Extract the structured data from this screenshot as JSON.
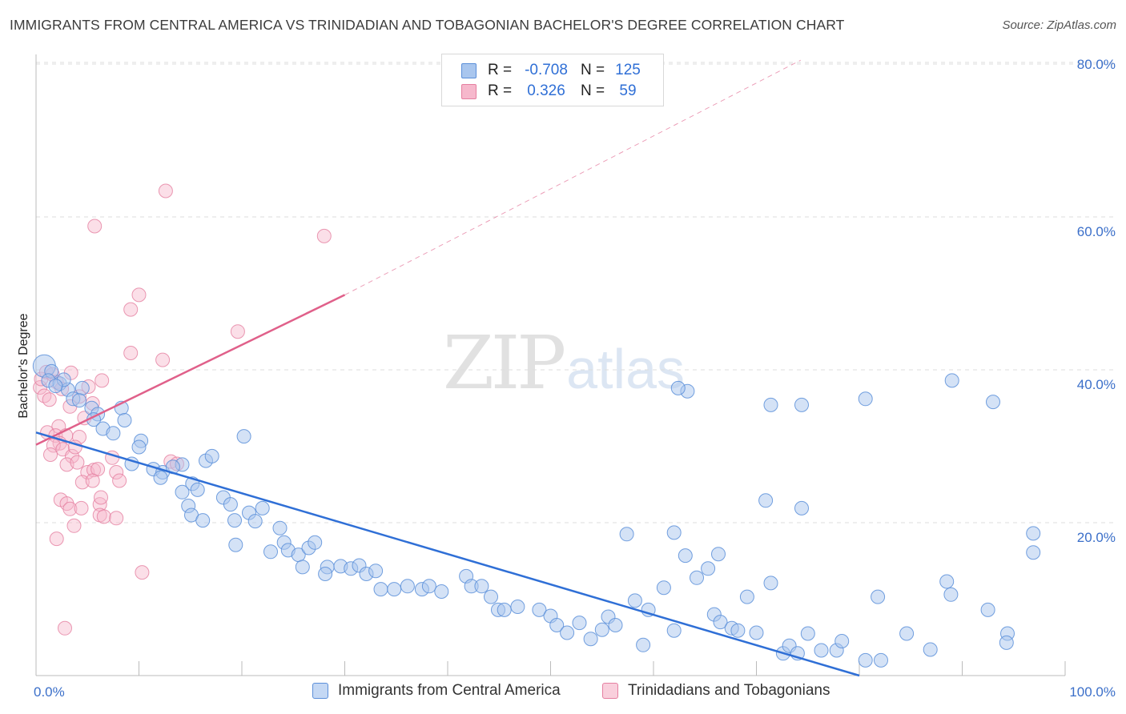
{
  "header": {
    "title": "IMMIGRANTS FROM CENTRAL AMERICA VS TRINIDADIAN AND TOBAGONIAN BACHELOR'S DEGREE CORRELATION CHART",
    "source": "Source: ZipAtlas.com"
  },
  "watermark": {
    "zip": "ZIP",
    "atlas": "atlas"
  },
  "legend": {
    "rows": [
      {
        "r_label": "R =",
        "r_value": "-0.708",
        "n_label": "N =",
        "n_value": "125"
      },
      {
        "r_label": "R =",
        "r_value": "0.326",
        "n_label": "N =",
        "n_value": "59"
      }
    ]
  },
  "bottom_legend": {
    "series1": "Immigrants from Central America",
    "series2": "Trinidadians and Tobagonians"
  },
  "colors": {
    "blue_fill": "#a9c6ee",
    "blue_stroke": "#5b8fd9",
    "blue_line": "#2f6fd6",
    "pink_fill": "#f6b8cc",
    "pink_stroke": "#e57fa0",
    "pink_line": "#e0608a",
    "grid": "#dddddd",
    "axis_label": "#3b6fc9"
  },
  "chart_data": {
    "type": "scatter",
    "title": "IMMIGRANTS FROM CENTRAL AMERICA VS TRINIDADIAN AND TOBAGONIAN BACHELOR'S DEGREE CORRELATION CHART",
    "xlabel": "",
    "ylabel": "Bachelor's Degree",
    "xlim": [
      0,
      100
    ],
    "ylim": [
      0,
      82
    ],
    "x_tick_labels": [
      "0.0%",
      "100.0%"
    ],
    "y_ticks": [
      20,
      40,
      60,
      80
    ],
    "y_tick_labels": [
      "20.0%",
      "40.0%",
      "60.0%",
      "80.0%"
    ],
    "grid": true,
    "legend_position": "top-center",
    "series": [
      {
        "name": "Immigrants from Central America",
        "R": -0.708,
        "N": 125,
        "trend": {
          "x": [
            0,
            80.0
          ],
          "y": [
            31.8,
            0.0
          ]
        },
        "points": [
          [
            0.8,
            40.5
          ],
          [
            1.5,
            39.8
          ],
          [
            1.2,
            38.6
          ],
          [
            2.3,
            38.2
          ],
          [
            3.1,
            37.4
          ],
          [
            4.5,
            37.6
          ],
          [
            2.7,
            38.7
          ],
          [
            1.9,
            37.9
          ],
          [
            3.6,
            36.2
          ],
          [
            4.2,
            36.0
          ],
          [
            5.4,
            35.0
          ],
          [
            6.0,
            34.2
          ],
          [
            8.3,
            35.0
          ],
          [
            5.6,
            33.5
          ],
          [
            8.6,
            33.4
          ],
          [
            6.5,
            32.3
          ],
          [
            7.5,
            31.7
          ],
          [
            10.2,
            30.7
          ],
          [
            10.0,
            29.9
          ],
          [
            9.3,
            27.7
          ],
          [
            11.4,
            27.0
          ],
          [
            12.3,
            26.6
          ],
          [
            12.1,
            25.9
          ],
          [
            14.2,
            27.6
          ],
          [
            13.3,
            27.3
          ],
          [
            16.5,
            28.1
          ],
          [
            17.1,
            28.7
          ],
          [
            15.2,
            25.1
          ],
          [
            15.7,
            24.3
          ],
          [
            14.2,
            24.0
          ],
          [
            18.2,
            23.3
          ],
          [
            18.9,
            22.4
          ],
          [
            20.2,
            31.3
          ],
          [
            14.8,
            22.2
          ],
          [
            15.1,
            21.0
          ],
          [
            16.2,
            20.3
          ],
          [
            19.3,
            20.3
          ],
          [
            20.7,
            21.3
          ],
          [
            21.3,
            20.2
          ],
          [
            22.0,
            21.9
          ],
          [
            23.7,
            19.3
          ],
          [
            24.1,
            17.4
          ],
          [
            19.4,
            17.1
          ],
          [
            22.8,
            16.2
          ],
          [
            24.5,
            16.4
          ],
          [
            25.5,
            15.8
          ],
          [
            26.5,
            16.7
          ],
          [
            27.1,
            17.4
          ],
          [
            25.9,
            14.2
          ],
          [
            28.3,
            14.2
          ],
          [
            29.6,
            14.3
          ],
          [
            30.6,
            14.0
          ],
          [
            31.4,
            14.4
          ],
          [
            32.1,
            13.3
          ],
          [
            33.0,
            13.7
          ],
          [
            33.5,
            11.3
          ],
          [
            28.1,
            13.3
          ],
          [
            34.8,
            11.3
          ],
          [
            36.1,
            11.7
          ],
          [
            37.5,
            11.3
          ],
          [
            38.2,
            11.7
          ],
          [
            39.4,
            11.0
          ],
          [
            41.8,
            13.0
          ],
          [
            42.3,
            11.7
          ],
          [
            43.3,
            11.7
          ],
          [
            44.2,
            10.3
          ],
          [
            44.9,
            8.6
          ],
          [
            45.5,
            8.6
          ],
          [
            46.8,
            9.0
          ],
          [
            48.9,
            8.6
          ],
          [
            50.0,
            7.8
          ],
          [
            50.6,
            6.6
          ],
          [
            51.6,
            5.6
          ],
          [
            52.8,
            6.9
          ],
          [
            53.9,
            4.8
          ],
          [
            55.0,
            6.0
          ],
          [
            55.6,
            7.7
          ],
          [
            56.3,
            6.6
          ],
          [
            57.4,
            18.5
          ],
          [
            58.2,
            9.8
          ],
          [
            59.5,
            8.6
          ],
          [
            61.0,
            11.5
          ],
          [
            62.0,
            5.9
          ],
          [
            63.1,
            15.7
          ],
          [
            64.2,
            12.8
          ],
          [
            65.3,
            14.0
          ],
          [
            65.9,
            8.0
          ],
          [
            66.5,
            7.0
          ],
          [
            67.6,
            6.2
          ],
          [
            68.2,
            5.9
          ],
          [
            69.1,
            10.3
          ],
          [
            70.0,
            5.6
          ],
          [
            71.4,
            12.1
          ],
          [
            72.6,
            2.9
          ],
          [
            73.2,
            3.9
          ],
          [
            74.0,
            2.9
          ],
          [
            75.0,
            5.5
          ],
          [
            76.3,
            3.3
          ],
          [
            77.8,
            3.3
          ],
          [
            78.3,
            4.5
          ],
          [
            80.6,
            2.0
          ],
          [
            82.1,
            2.0
          ],
          [
            84.6,
            5.5
          ],
          [
            86.9,
            3.4
          ],
          [
            88.9,
            10.6
          ],
          [
            92.5,
            8.6
          ],
          [
            94.4,
            5.5
          ],
          [
            62.0,
            18.7
          ],
          [
            63.3,
            37.2
          ],
          [
            70.9,
            22.9
          ],
          [
            74.4,
            21.9
          ],
          [
            94.3,
            4.3
          ],
          [
            96.9,
            18.6
          ],
          [
            96.9,
            16.1
          ],
          [
            81.8,
            10.3
          ],
          [
            88.5,
            12.3
          ],
          [
            80.6,
            36.2
          ],
          [
            74.4,
            35.4
          ],
          [
            89.0,
            38.6
          ],
          [
            93.0,
            35.8
          ],
          [
            62.4,
            37.6
          ],
          [
            71.4,
            35.4
          ],
          [
            66.3,
            15.9
          ],
          [
            59.0,
            4.0
          ]
        ]
      },
      {
        "name": "Trinidadians and Tobagonians",
        "R": 0.326,
        "N": 59,
        "trend": {
          "x": [
            0,
            30.0
          ],
          "y": [
            30.2,
            49.8
          ]
        },
        "trend_extension": {
          "x": [
            30.0,
            74.3
          ],
          "y": [
            49.8,
            80.5
          ]
        },
        "points": [
          [
            0.4,
            37.7
          ],
          [
            0.8,
            36.6
          ],
          [
            0.5,
            38.8
          ],
          [
            1.0,
            39.7
          ],
          [
            1.6,
            39.4
          ],
          [
            2.0,
            38.4
          ],
          [
            2.5,
            37.5
          ],
          [
            1.3,
            36.1
          ],
          [
            3.4,
            39.6
          ],
          [
            2.2,
            32.6
          ],
          [
            1.1,
            31.8
          ],
          [
            1.9,
            31.4
          ],
          [
            2.9,
            31.4
          ],
          [
            2.3,
            30.4
          ],
          [
            1.7,
            30.1
          ],
          [
            2.6,
            29.6
          ],
          [
            3.3,
            35.2
          ],
          [
            4.2,
            36.5
          ],
          [
            5.1,
            37.8
          ],
          [
            5.5,
            35.6
          ],
          [
            6.4,
            38.6
          ],
          [
            4.2,
            31.2
          ],
          [
            3.5,
            28.7
          ],
          [
            3.0,
            27.6
          ],
          [
            4.0,
            27.9
          ],
          [
            5.0,
            26.6
          ],
          [
            4.5,
            25.3
          ],
          [
            5.6,
            26.9
          ],
          [
            6.0,
            27.0
          ],
          [
            5.5,
            25.5
          ],
          [
            2.4,
            23.0
          ],
          [
            3.0,
            22.5
          ],
          [
            3.3,
            21.8
          ],
          [
            4.4,
            21.9
          ],
          [
            3.7,
            19.6
          ],
          [
            2.0,
            17.9
          ],
          [
            6.2,
            22.4
          ],
          [
            6.2,
            21.0
          ],
          [
            6.6,
            20.8
          ],
          [
            7.4,
            28.5
          ],
          [
            7.8,
            26.6
          ],
          [
            8.1,
            25.5
          ],
          [
            2.8,
            6.2
          ],
          [
            9.2,
            47.9
          ],
          [
            10.0,
            49.8
          ],
          [
            12.3,
            41.3
          ],
          [
            9.2,
            42.2
          ],
          [
            5.7,
            58.8
          ],
          [
            12.6,
            63.4
          ],
          [
            28.0,
            57.5
          ],
          [
            19.6,
            45.0
          ],
          [
            13.1,
            28.0
          ],
          [
            13.7,
            27.7
          ],
          [
            10.3,
            13.5
          ],
          [
            7.8,
            20.6
          ],
          [
            6.3,
            23.3
          ],
          [
            4.7,
            33.7
          ],
          [
            3.8,
            29.9
          ],
          [
            1.4,
            28.9
          ]
        ]
      }
    ]
  }
}
